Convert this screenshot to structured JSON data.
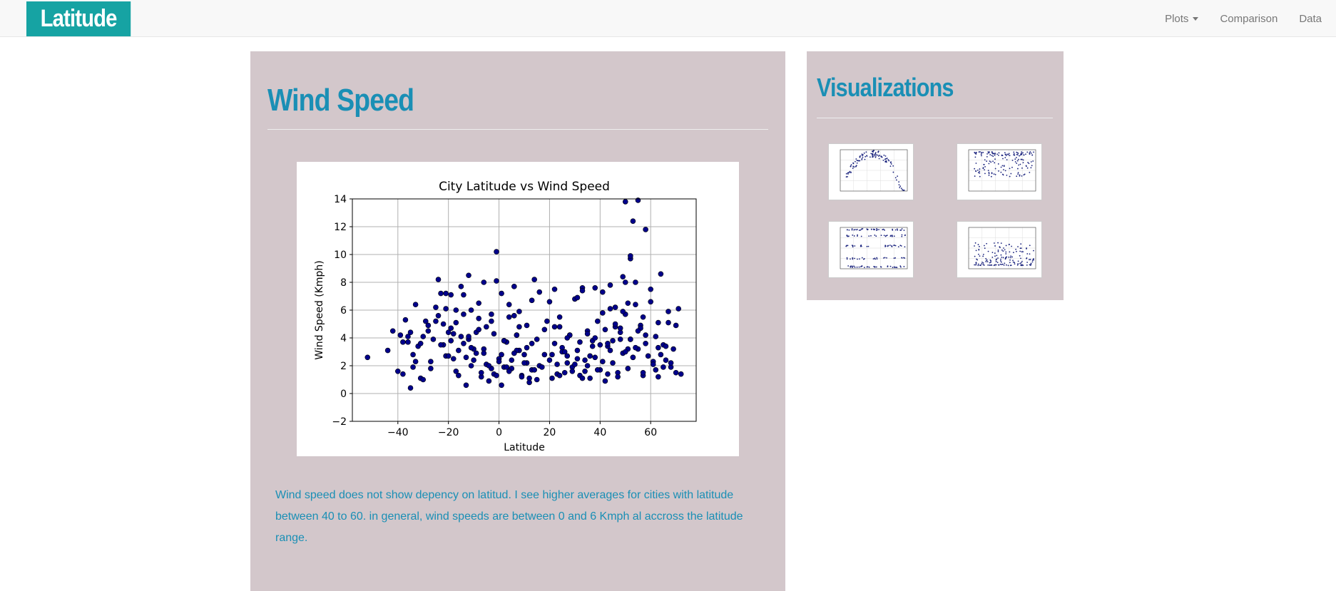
{
  "brand": "Latitude",
  "nav": {
    "plots": "Plots",
    "comparison": "Comparison",
    "data": "Data"
  },
  "main": {
    "title": "Wind Speed",
    "description": "Wind speed does not show depency on latitud. I see higher averages for cities with latitude between 40 to 60. in general, wind speeds are between 0 and 6 Kmph al accross the latitude range."
  },
  "sidebar": {
    "title": "Visualizations"
  },
  "chart_data": {
    "type": "scatter",
    "title": "City Latitude vs Wind Speed",
    "xlabel": "Latitude",
    "ylabel": "Wind Speed (Kmph)",
    "xlim": [
      -58,
      78
    ],
    "ylim": [
      -2,
      14
    ],
    "xticks": [
      "−40",
      "−20",
      "0",
      "20",
      "40",
      "60"
    ],
    "xtick_values": [
      -40,
      -20,
      0,
      20,
      40,
      60
    ],
    "yticks": [
      "−2",
      "0",
      "2",
      "4",
      "6",
      "8",
      "10",
      "12",
      "14"
    ],
    "ytick_values": [
      -2,
      0,
      2,
      4,
      6,
      8,
      10,
      12,
      14
    ],
    "grid": true,
    "marker_color": "#00008b",
    "x": [
      -52,
      -44,
      -42,
      -40,
      -39,
      -38,
      -37,
      -36,
      -35,
      -34,
      -33,
      -32,
      -31,
      -30,
      -29,
      -28,
      -27,
      -26,
      -25,
      -24,
      -23,
      -22,
      -21,
      -20,
      -19,
      -18,
      -17,
      -16,
      -15,
      -14,
      -13,
      -12,
      -11,
      -10,
      -9,
      -8,
      -7,
      -6,
      -5,
      -4,
      -3,
      -2,
      -1,
      0,
      1,
      2,
      3,
      4,
      5,
      6,
      7,
      8,
      9,
      10,
      11,
      12,
      13,
      14,
      15,
      16,
      18,
      20,
      21,
      22,
      23,
      24,
      25,
      26,
      27,
      28,
      29,
      30,
      31,
      32,
      33,
      34,
      35,
      36,
      37,
      38,
      39,
      40,
      41,
      42,
      43,
      44,
      45,
      46,
      47,
      48,
      49,
      50,
      51,
      52,
      53,
      54,
      55,
      56,
      57,
      58,
      60,
      61,
      62,
      63,
      64,
      65,
      66,
      67,
      68,
      69,
      70,
      71,
      72,
      -38,
      -35,
      -33,
      -30,
      -27,
      -24,
      -21,
      -19,
      -17,
      -15,
      -13,
      -11,
      -9,
      -7,
      -5,
      -3,
      -1,
      1,
      3,
      5,
      7,
      9,
      11,
      13,
      15,
      17,
      21,
      23,
      25,
      27,
      29,
      31,
      33,
      35,
      37,
      39,
      41,
      43,
      45,
      47,
      49,
      51,
      53,
      55,
      57,
      59,
      61,
      63,
      65,
      67,
      -36,
      -34,
      -31,
      -28,
      -25,
      -22,
      -20,
      -18,
      -16,
      -14,
      -12,
      -10,
      -8,
      -6,
      -4,
      -2,
      0,
      2,
      4,
      6,
      8,
      10,
      12,
      14,
      20,
      22,
      24,
      26,
      28,
      30,
      32,
      34,
      36,
      38,
      40,
      42,
      44,
      46,
      48,
      50,
      52,
      54,
      56,
      58,
      62,
      64,
      66,
      68,
      -19,
      -11,
      -3,
      1,
      6,
      13,
      22,
      31,
      38,
      44,
      50,
      52,
      53,
      50,
      60,
      -21,
      -17,
      -14,
      -8,
      -1,
      4,
      8,
      16,
      19,
      24,
      33,
      41,
      46,
      49,
      51,
      54,
      57,
      63,
      70,
      -23,
      -12,
      -6,
      2,
      7,
      11,
      18,
      27,
      35,
      43,
      48,
      52,
      55,
      58
    ],
    "y": [
      2.6,
      3.1,
      4.5,
      1.6,
      4.2,
      1.4,
      5.3,
      3.7,
      0.4,
      1.9,
      6.4,
      3.4,
      1.1,
      1.0,
      5.2,
      4.5,
      2.3,
      3.9,
      6.2,
      8.2,
      7.2,
      5.0,
      6.1,
      4.4,
      3.8,
      2.5,
      5.1,
      1.3,
      7.7,
      3.6,
      0.6,
      8.5,
      2.0,
      3.2,
      2.9,
      6.5,
      1.2,
      8.0,
      4.8,
      0.9,
      5.2,
      1.4,
      10.2,
      2.5,
      0.6,
      1.9,
      3.7,
      5.5,
      1.8,
      7.7,
      4.2,
      3.1,
      1.3,
      2.8,
      4.9,
      0.8,
      1.7,
      8.2,
      3.9,
      2.0,
      4.6,
      6.6,
      1.1,
      4.8,
      2.1,
      5.5,
      3.3,
      1.5,
      2.7,
      4.2,
      1.9,
      6.8,
      3.1,
      1.3,
      7.6,
      2.4,
      4.5,
      1.1,
      3.8,
      2.6,
      5.2,
      1.7,
      7.3,
      0.9,
      3.4,
      6.1,
      2.2,
      4.8,
      1.5,
      3.9,
      8.4,
      5.7,
      3.2,
      9.7,
      2.6,
      6.4,
      13.9,
      4.9,
      1.3,
      11.8,
      7.5,
      2.3,
      4.1,
      1.2,
      8.6,
      3.5,
      2.4,
      5.1,
      1.9,
      3.2,
      1.5,
      6.1,
      1.4,
      3.7,
      4.4,
      2.3,
      4.1,
      1.8,
      5.6,
      2.7,
      4.7,
      1.6,
      4.1,
      2.6,
      3.3,
      4.4,
      1.5,
      2.1,
      1.8,
      1.3,
      2.8,
      1.9,
      2.4,
      3.1,
      1.2,
      2.2,
      3.6,
      1.0,
      1.9,
      2.8,
      1.4,
      3.0,
      2.2,
      1.6,
      2.5,
      1.1,
      2.0,
      3.4,
      1.7,
      2.3,
      1.4,
      3.8,
      1.2,
      2.9,
      1.8,
      2.6,
      3.2,
      1.5,
      2.7,
      2.1,
      3.3,
      1.9,
      5.9,
      4.1,
      2.8,
      3.6,
      4.9,
      5.2,
      3.5,
      2.7,
      4.3,
      3.1,
      5.7,
      3.9,
      2.4,
      4.6,
      3.2,
      2.0,
      4.3,
      2.3,
      3.8,
      1.6,
      2.9,
      4.8,
      2.2,
      1.1,
      1.7,
      2.4,
      3.6,
      1.3,
      3.0,
      4.2,
      2.1,
      3.7,
      1.6,
      2.7,
      4.0,
      3.5,
      4.6,
      3.1,
      5.0,
      4.4,
      3.0,
      3.9,
      3.3,
      4.7,
      3.6,
      1.7,
      2.8,
      3.4,
      2.2,
      7.1,
      6.0,
      5.7,
      7.2,
      5.6,
      6.7,
      7.5,
      6.9,
      7.6,
      7.8,
      8.0,
      9.9,
      12.4,
      13.8,
      6.6,
      7.2,
      6.0,
      7.1,
      5.4,
      8.1,
      6.4,
      5.9,
      7.3,
      5.2,
      4.8,
      7.4,
      5.8,
      6.2,
      5.9,
      6.5,
      8.0,
      5.5,
      5.1,
      4.9,
      3.5,
      4.1,
      2.9,
      3.8,
      4.2,
      3.3,
      2.8,
      4.0,
      4.3,
      3.6,
      4.7,
      3.9,
      4.5,
      4.2
    ]
  }
}
